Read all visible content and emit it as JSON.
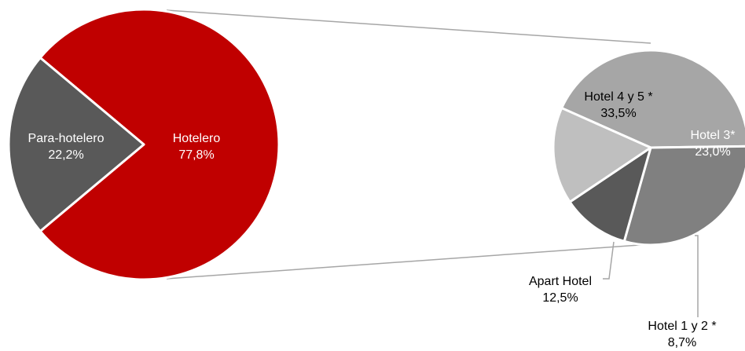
{
  "chart_data": {
    "type": "pie",
    "subtype": "pie-of-pie",
    "main": {
      "slices": [
        {
          "label": "Hotelero",
          "value": 77.8,
          "value_label": "77,8%",
          "color": "#c00000",
          "label_color": "#ffffff"
        },
        {
          "label": "Para-hotelero",
          "value": 22.2,
          "value_label": "22,2%",
          "color": "#595959",
          "label_color": "#ffffff"
        }
      ]
    },
    "detail": {
      "parent": "Hotelero",
      "slices": [
        {
          "label": "Hotel 4 y 5 *",
          "value": 33.5,
          "value_label": "33,5%",
          "color": "#a6a6a6",
          "label_color": "#000000"
        },
        {
          "label": "Hotel 3*",
          "value": 23.0,
          "value_label": "23,0%",
          "color": "#808080",
          "label_color": "#ffffff"
        },
        {
          "label": "Hotel 1 y 2 *",
          "value": 8.7,
          "value_label": "8,7%",
          "color": "#595959",
          "label_color": "#000000"
        },
        {
          "label": "Apart Hotel",
          "value": 12.5,
          "value_label": "12,5%",
          "color": "#bfbfbf",
          "label_color": "#000000"
        }
      ]
    },
    "legend": "none",
    "title": ""
  }
}
